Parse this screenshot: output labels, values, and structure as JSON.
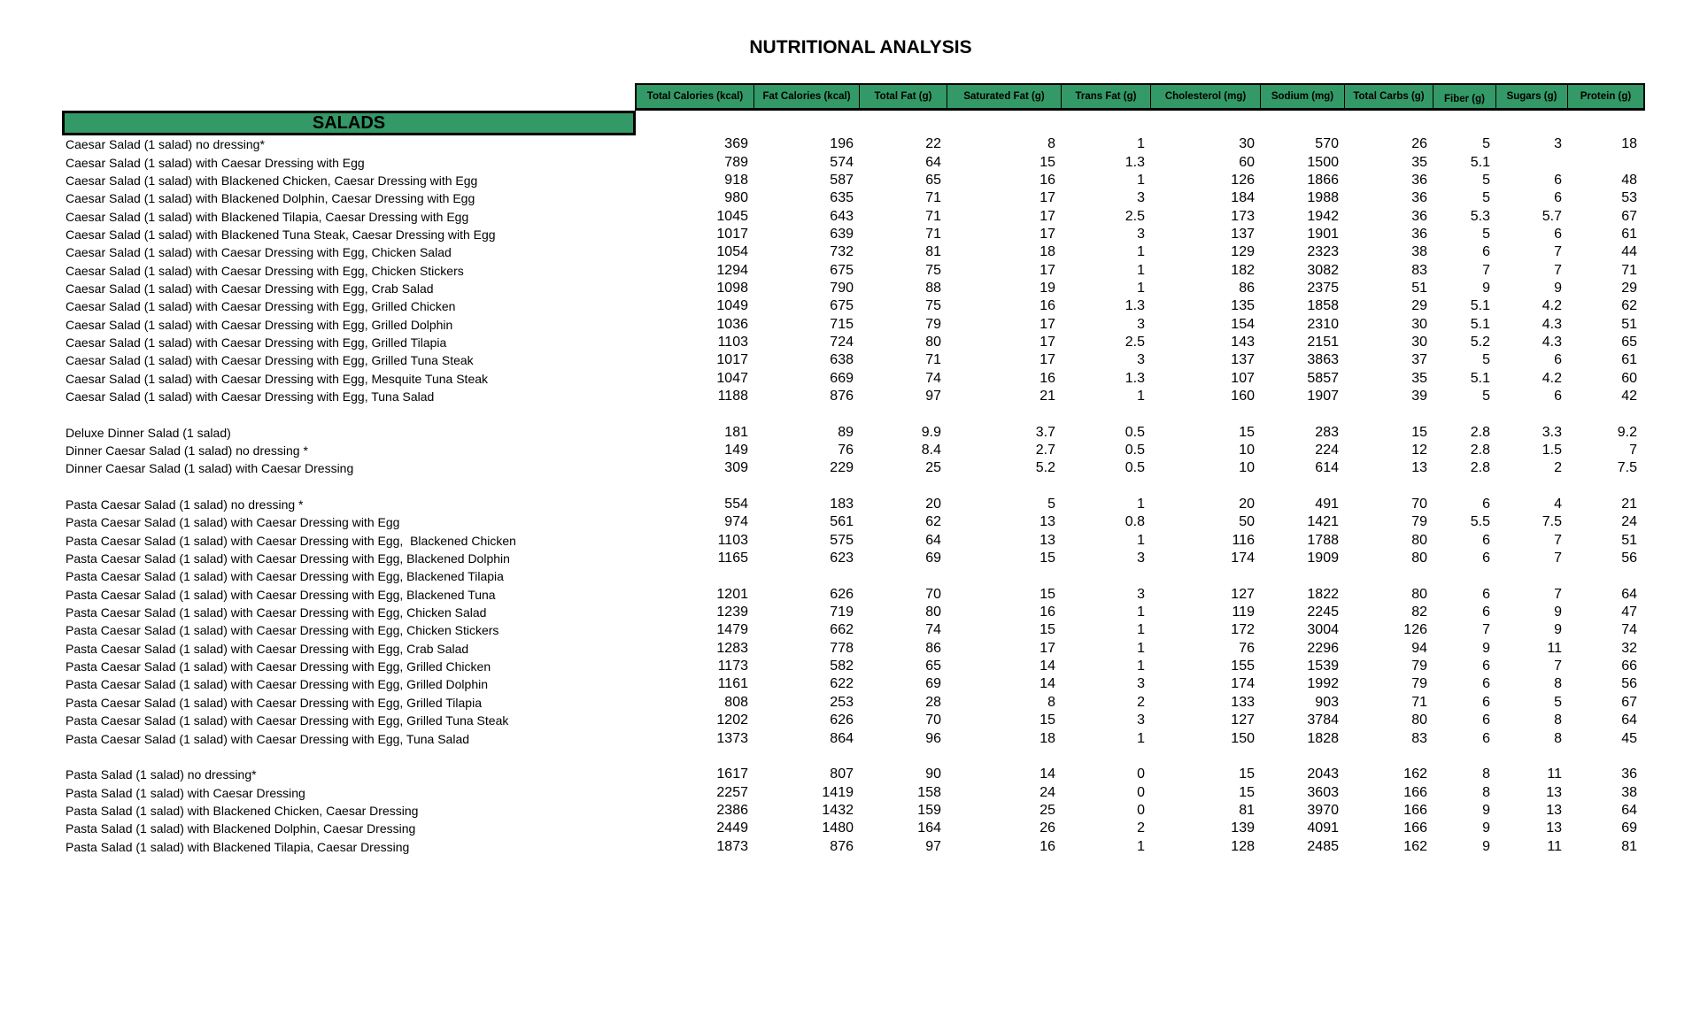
{
  "title": "NUTRITIONAL ANALYSIS",
  "section": "SALADS",
  "colors": {
    "header_green": "#339966"
  },
  "columns": [
    "Total Calories (kcal)",
    "Fat Calories (kcal)",
    "Total Fat (g)",
    "Saturated Fat (g)",
    "Trans Fat (g)",
    "Cholesterol (mg)",
    "Sodium (mg)",
    "Total Carbs (g)",
    "Fiber (g)",
    "Sugars (g)",
    "Protein (g)"
  ],
  "rows": [
    {
      "label": "Caesar Salad (1 salad) no dressing*",
      "values": [
        "369",
        "196",
        "22",
        "8",
        "1",
        "30",
        "570",
        "26",
        "5",
        "3",
        "18"
      ]
    },
    {
      "label": "Caesar Salad (1 salad) with Caesar Dressing with Egg",
      "values": [
        "789",
        "574",
        "64",
        "15",
        "1.3",
        "60",
        "1500",
        "35",
        "5.1",
        "",
        ""
      ]
    },
    {
      "label": "Caesar Salad (1 salad) with Blackened Chicken, Caesar Dressing with Egg",
      "values": [
        "918",
        "587",
        "65",
        "16",
        "1",
        "126",
        "1866",
        "36",
        "5",
        "6",
        "48"
      ]
    },
    {
      "label": "Caesar Salad (1 salad) with Blackened Dolphin, Caesar Dressing with Egg",
      "values": [
        "980",
        "635",
        "71",
        "17",
        "3",
        "184",
        "1988",
        "36",
        "5",
        "6",
        "53"
      ]
    },
    {
      "label": "Caesar Salad (1 salad) with Blackened Tilapia, Caesar Dressing with Egg",
      "values": [
        "1045",
        "643",
        "71",
        "17",
        "2.5",
        "173",
        "1942",
        "36",
        "5.3",
        "5.7",
        "67"
      ]
    },
    {
      "label": "Caesar Salad (1 salad) with Blackened Tuna Steak, Caesar Dressing with Egg",
      "values": [
        "1017",
        "639",
        "71",
        "17",
        "3",
        "137",
        "1901",
        "36",
        "5",
        "6",
        "61"
      ]
    },
    {
      "label": "Caesar Salad (1 salad) with Caesar Dressing with Egg, Chicken Salad",
      "values": [
        "1054",
        "732",
        "81",
        "18",
        "1",
        "129",
        "2323",
        "38",
        "6",
        "7",
        "44"
      ]
    },
    {
      "label": "Caesar Salad (1 salad) with Caesar Dressing with Egg, Chicken Stickers",
      "values": [
        "1294",
        "675",
        "75",
        "17",
        "1",
        "182",
        "3082",
        "83",
        "7",
        "7",
        "71"
      ]
    },
    {
      "label": "Caesar Salad (1 salad) with Caesar Dressing with Egg, Crab Salad",
      "values": [
        "1098",
        "790",
        "88",
        "19",
        "1",
        "86",
        "2375",
        "51",
        "9",
        "9",
        "29"
      ]
    },
    {
      "label": "Caesar Salad (1 salad) with Caesar Dressing with Egg, Grilled Chicken",
      "values": [
        "1049",
        "675",
        "75",
        "16",
        "1.3",
        "135",
        "1858",
        "29",
        "5.1",
        "4.2",
        "62"
      ]
    },
    {
      "label": "Caesar Salad (1 salad) with Caesar Dressing with Egg, Grilled Dolphin",
      "values": [
        "1036",
        "715",
        "79",
        "17",
        "3",
        "154",
        "2310",
        "30",
        "5.1",
        "4.3",
        "51"
      ]
    },
    {
      "label": "Caesar Salad (1 salad) with Caesar Dressing with Egg, Grilled Tilapia",
      "values": [
        "1103",
        "724",
        "80",
        "17",
        "2.5",
        "143",
        "2151",
        "30",
        "5.2",
        "4.3",
        "65"
      ]
    },
    {
      "label": "Caesar Salad (1 salad) with Caesar Dressing with Egg, Grilled Tuna Steak",
      "values": [
        "1017",
        "638",
        "71",
        "17",
        "3",
        "137",
        "3863",
        "37",
        "5",
        "6",
        "61"
      ]
    },
    {
      "label": "Caesar Salad (1 salad) with Caesar Dressing with Egg, Mesquite Tuna Steak",
      "values": [
        "1047",
        "669",
        "74",
        "16",
        "1.3",
        "107",
        "5857",
        "35",
        "5.1",
        "4.2",
        "60"
      ]
    },
    {
      "label": "Caesar Salad (1 salad) with Caesar Dressing with Egg, Tuna Salad",
      "values": [
        "1188",
        "876",
        "97",
        "21",
        "1",
        "160",
        "1907",
        "39",
        "5",
        "6",
        "42"
      ]
    },
    {
      "label": "",
      "values": []
    },
    {
      "label": "Deluxe Dinner Salad (1 salad)",
      "values": [
        "181",
        "89",
        "9.9",
        "3.7",
        "0.5",
        "15",
        "283",
        "15",
        "2.8",
        "3.3",
        "9.2"
      ]
    },
    {
      "label": "Dinner Caesar Salad (1 salad) no dressing *",
      "values": [
        "149",
        "76",
        "8.4",
        "2.7",
        "0.5",
        "10",
        "224",
        "12",
        "2.8",
        "1.5",
        "7"
      ]
    },
    {
      "label": "Dinner Caesar Salad (1 salad) with Caesar Dressing",
      "values": [
        "309",
        "229",
        "25",
        "5.2",
        "0.5",
        "10",
        "614",
        "13",
        "2.8",
        "2",
        "7.5"
      ]
    },
    {
      "label": "",
      "values": []
    },
    {
      "label": "Pasta Caesar Salad (1 salad) no dressing *",
      "values": [
        "554",
        "183",
        "20",
        "5",
        "1",
        "20",
        "491",
        "70",
        "6",
        "4",
        "21"
      ]
    },
    {
      "label": "Pasta Caesar Salad (1 salad) with Caesar Dressing with Egg",
      "values": [
        "974",
        "561",
        "62",
        "13",
        "0.8",
        "50",
        "1421",
        "79",
        "5.5",
        "7.5",
        "24"
      ]
    },
    {
      "label": "Pasta Caesar Salad (1 salad) with Caesar Dressing with Egg,  Blackened Chicken",
      "values": [
        "1103",
        "575",
        "64",
        "13",
        "1",
        "116",
        "1788",
        "80",
        "6",
        "7",
        "51"
      ]
    },
    {
      "label": "Pasta Caesar Salad (1 salad) with Caesar Dressing with Egg, Blackened Dolphin",
      "values": [
        "1165",
        "623",
        "69",
        "15",
        "3",
        "174",
        "1909",
        "80",
        "6",
        "7",
        "56"
      ]
    },
    {
      "label": "Pasta Caesar Salad (1 salad) with Caesar Dressing with Egg, Blackened Tilapia",
      "values": []
    },
    {
      "label": "Pasta Caesar Salad (1 salad) with Caesar Dressing with Egg, Blackened Tuna",
      "values": [
        "1201",
        "626",
        "70",
        "15",
        "3",
        "127",
        "1822",
        "80",
        "6",
        "7",
        "64"
      ]
    },
    {
      "label": "Pasta Caesar Salad (1 salad) with Caesar Dressing with Egg, Chicken Salad",
      "values": [
        "1239",
        "719",
        "80",
        "16",
        "1",
        "119",
        "2245",
        "82",
        "6",
        "9",
        "47"
      ]
    },
    {
      "label": "Pasta Caesar Salad (1 salad) with Caesar Dressing with Egg, Chicken Stickers",
      "values": [
        "1479",
        "662",
        "74",
        "15",
        "1",
        "172",
        "3004",
        "126",
        "7",
        "9",
        "74"
      ]
    },
    {
      "label": "Pasta Caesar Salad (1 salad) with Caesar Dressing with Egg, Crab Salad",
      "values": [
        "1283",
        "778",
        "86",
        "17",
        "1",
        "76",
        "2296",
        "94",
        "9",
        "11",
        "32"
      ]
    },
    {
      "label": "Pasta Caesar Salad (1 salad) with Caesar Dressing with Egg, Grilled Chicken",
      "values": [
        "1173",
        "582",
        "65",
        "14",
        "1",
        "155",
        "1539",
        "79",
        "6",
        "7",
        "66"
      ]
    },
    {
      "label": "Pasta Caesar Salad (1 salad) with Caesar Dressing with Egg, Grilled Dolphin",
      "values": [
        "1161",
        "622",
        "69",
        "14",
        "3",
        "174",
        "1992",
        "79",
        "6",
        "8",
        "56"
      ]
    },
    {
      "label": "Pasta Caesar Salad (1 salad) with Caesar Dressing with Egg, Grilled Tilapia",
      "values": [
        "808",
        "253",
        "28",
        "8",
        "2",
        "133",
        "903",
        "71",
        "6",
        "5",
        "67"
      ]
    },
    {
      "label": "Pasta Caesar Salad (1 salad) with Caesar Dressing with Egg, Grilled Tuna Steak",
      "values": [
        "1202",
        "626",
        "70",
        "15",
        "3",
        "127",
        "3784",
        "80",
        "6",
        "8",
        "64"
      ]
    },
    {
      "label": "Pasta Caesar Salad (1 salad) with Caesar Dressing with Egg, Tuna Salad",
      "values": [
        "1373",
        "864",
        "96",
        "18",
        "1",
        "150",
        "1828",
        "83",
        "6",
        "8",
        "45"
      ]
    },
    {
      "label": "",
      "values": []
    },
    {
      "label": "Pasta Salad (1 salad) no dressing*",
      "values": [
        "1617",
        "807",
        "90",
        "14",
        "0",
        "15",
        "2043",
        "162",
        "8",
        "11",
        "36"
      ]
    },
    {
      "label": "Pasta Salad (1 salad) with Caesar Dressing",
      "values": [
        "2257",
        "1419",
        "158",
        "24",
        "0",
        "15",
        "3603",
        "166",
        "8",
        "13",
        "38"
      ]
    },
    {
      "label": "Pasta Salad (1 salad) with Blackened Chicken, Caesar Dressing",
      "values": [
        "2386",
        "1432",
        "159",
        "25",
        "0",
        "81",
        "3970",
        "166",
        "9",
        "13",
        "64"
      ]
    },
    {
      "label": "Pasta Salad (1 salad) with Blackened Dolphin, Caesar Dressing",
      "values": [
        "2449",
        "1480",
        "164",
        "26",
        "2",
        "139",
        "4091",
        "166",
        "9",
        "13",
        "69"
      ]
    },
    {
      "label": "Pasta Salad (1 salad) with Blackened Tilapia, Caesar Dressing",
      "values": [
        "1873",
        "876",
        "97",
        "16",
        "1",
        "128",
        "2485",
        "162",
        "9",
        "11",
        "81"
      ]
    }
  ]
}
